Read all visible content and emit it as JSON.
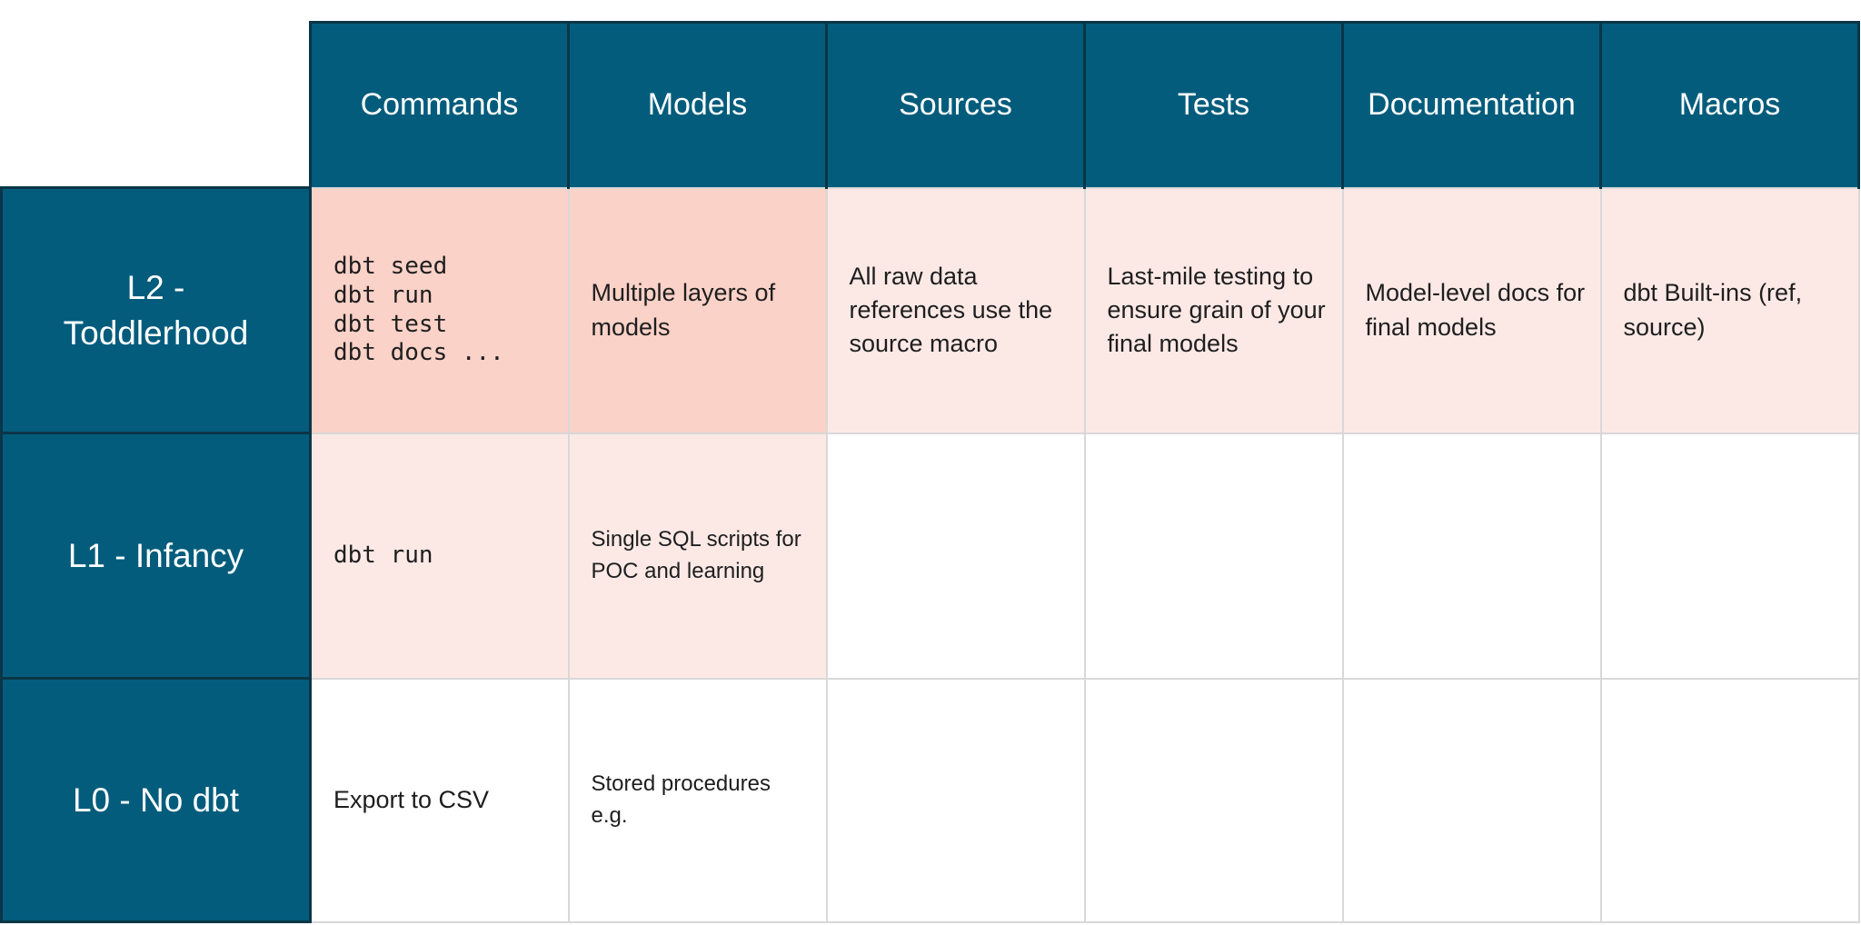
{
  "header": {
    "corner": "",
    "columns": [
      "Commands",
      "Models",
      "Sources",
      "Tests",
      "Documentation",
      "Macros"
    ]
  },
  "rows": [
    {
      "label": "L2 - Toddlerhood",
      "cells": [
        "dbt seed\ndbt run\ndbt test\ndbt docs ...",
        "Multiple layers of models",
        "All raw data references use the source macro",
        "Last-mile testing to ensure grain of your final models",
        "Model-level docs for final models",
        "dbt Built-ins (ref, source)"
      ]
    },
    {
      "label": "L1 - Infancy",
      "cells": [
        "dbt run",
        "Single SQL scripts for POC and learning",
        "",
        "",
        "",
        ""
      ]
    },
    {
      "label": "L0 - No dbt",
      "cells": [
        "Export to CSV",
        "Stored procedures e.g.",
        "",
        "",
        "",
        ""
      ]
    }
  ],
  "colors": {
    "header_fill": "#035C7C",
    "header_border": "#0B3647",
    "cell_salmon": "#FBD2C8",
    "cell_pink": "#FCE9E6",
    "cell_border": "#D8D8D8",
    "header_text": "#FFFFFF",
    "body_text": "#1E1E1E"
  }
}
